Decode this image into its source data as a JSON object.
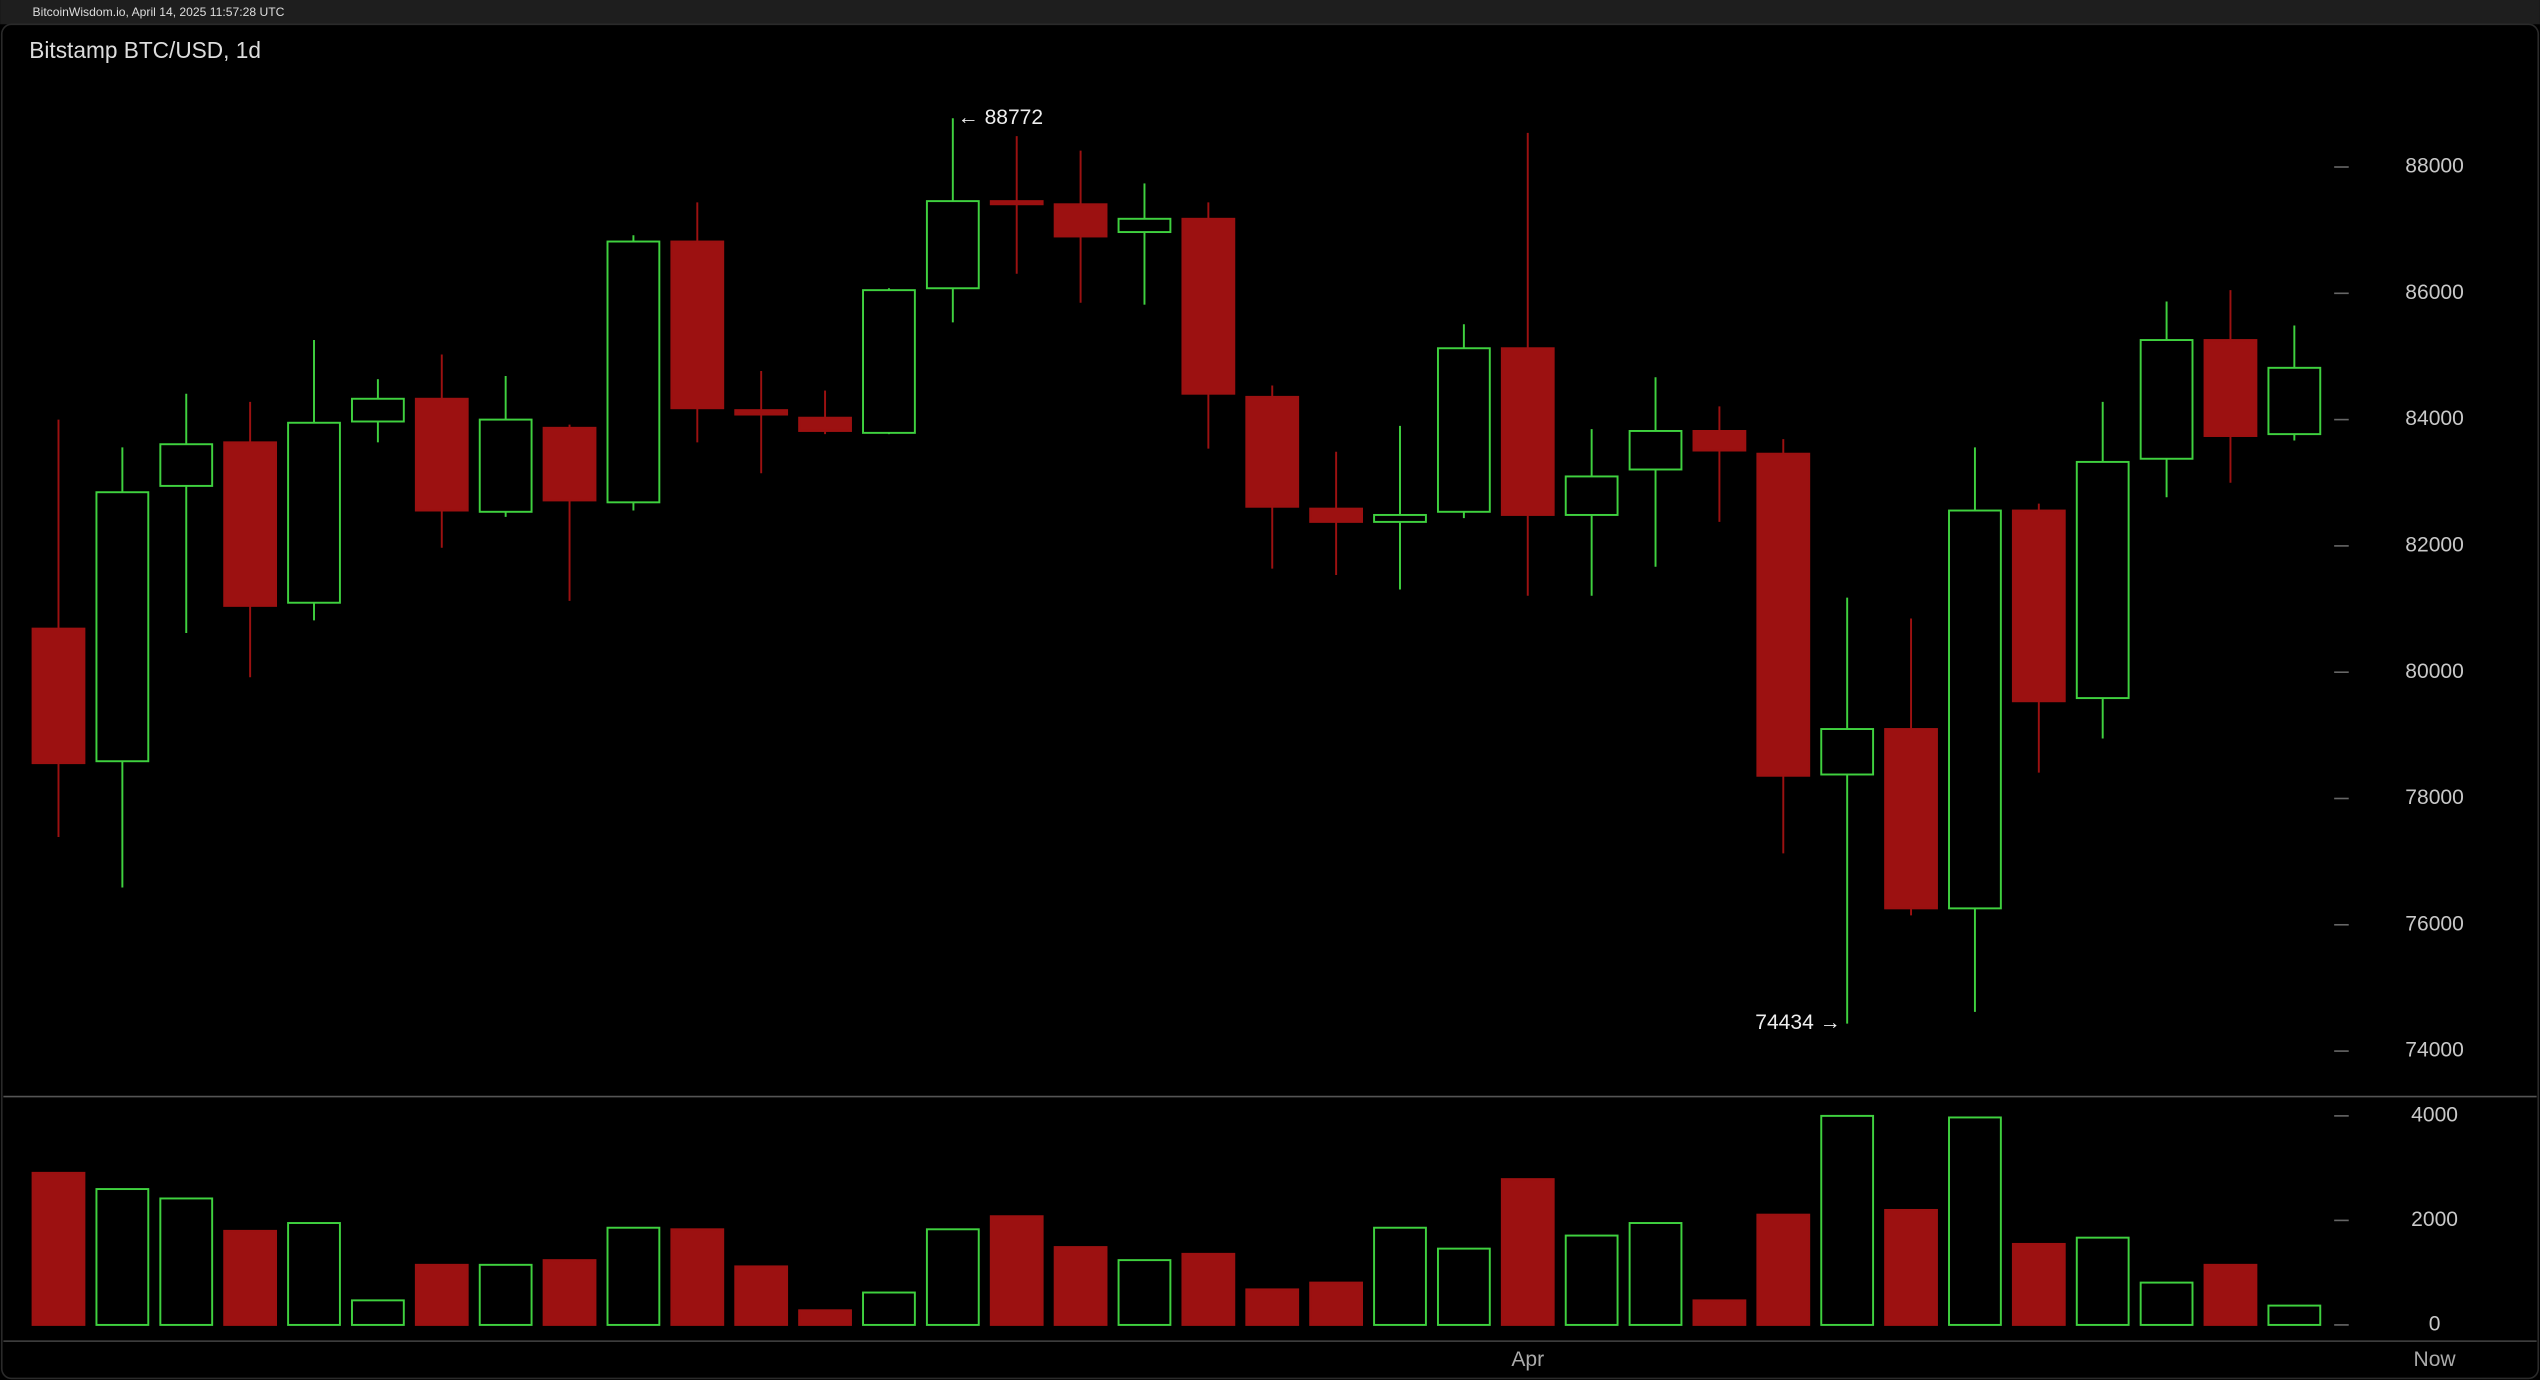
{
  "header": "BitcoinWisdom.io, April 14, 2025 11:57:28 UTC",
  "chart_data": [
    {
      "type": "candlestick",
      "title": "Bitstamp BTC/USD, 1d",
      "categories": [
        null,
        null,
        null,
        null,
        null,
        null,
        null,
        null,
        null,
        null,
        null,
        null,
        null,
        null,
        null,
        null,
        null,
        null,
        null,
        null,
        null,
        null,
        null,
        "Apr",
        null,
        null,
        null,
        null,
        null,
        null,
        null,
        null,
        null,
        null,
        null,
        null
      ],
      "open": [
        80690,
        78590,
        82950,
        83640,
        81100,
        83970,
        84330,
        82540,
        83870,
        82690,
        86820,
        84150,
        84030,
        83790,
        86080,
        87460,
        87410,
        86970,
        87180,
        84360,
        82590,
        82380,
        82540,
        85130,
        82490,
        83210,
        83820,
        83460,
        78380,
        79100,
        76260,
        82560,
        79590,
        83380,
        85260,
        83770
      ],
      "high": [
        84000,
        83560,
        84410,
        84280,
        85260,
        84640,
        85030,
        84690,
        83920,
        86920,
        87440,
        84770,
        84460,
        86080,
        88772,
        88490,
        88260,
        87740,
        87440,
        84540,
        83490,
        83900,
        85510,
        88540,
        83850,
        84670,
        84210,
        83690,
        81180,
        80850,
        83560,
        82670,
        84280,
        85870,
        86050,
        85490
      ],
      "low": [
        77390,
        76590,
        80620,
        79920,
        80820,
        83640,
        81970,
        82460,
        81130,
        82560,
        83640,
        83150,
        83770,
        83770,
        85540,
        86310,
        85850,
        85820,
        83540,
        81640,
        81540,
        81310,
        82440,
        81210,
        81210,
        81670,
        82380,
        77130,
        74434,
        76150,
        74620,
        78410,
        78950,
        82770,
        83000,
        83670
      ],
      "close": [
        78560,
        82850,
        83610,
        81050,
        83950,
        84330,
        82560,
        84000,
        82720,
        86820,
        84180,
        84080,
        83820,
        86050,
        87460,
        87410,
        86900,
        87180,
        84410,
        82620,
        82380,
        82490,
        85130,
        82490,
        83100,
        83820,
        83510,
        78360,
        79100,
        76260,
        82560,
        79540,
        83330,
        85260,
        83740,
        84820
      ],
      "up_color": "#3fd13f",
      "down_color": "#9c1111",
      "ylim": [
        73280,
        90260
      ],
      "yticks": [
        74000,
        76000,
        78000,
        80000,
        82000,
        84000,
        86000,
        88000
      ],
      "annotations": [
        {
          "text": "← 88772",
          "value": 88772
        },
        {
          "text": "74434 →",
          "value": 74434
        }
      ]
    },
    {
      "type": "bar",
      "now_label": "Now",
      "values": [
        2910,
        2600,
        2420,
        1800,
        1950,
        470,
        1150,
        1150,
        1240,
        1860,
        1830,
        1120,
        280,
        620,
        1830,
        2080,
        1490,
        1240,
        1360,
        680,
        810,
        1860,
        1460,
        2790,
        1710,
        1950,
        470,
        2110,
        4000,
        2200,
        3970,
        1550,
        1670,
        810,
        1150,
        370
      ],
      "ylim": [
        -310,
        4370
      ],
      "yticks": [
        0,
        2000,
        4000
      ]
    }
  ]
}
